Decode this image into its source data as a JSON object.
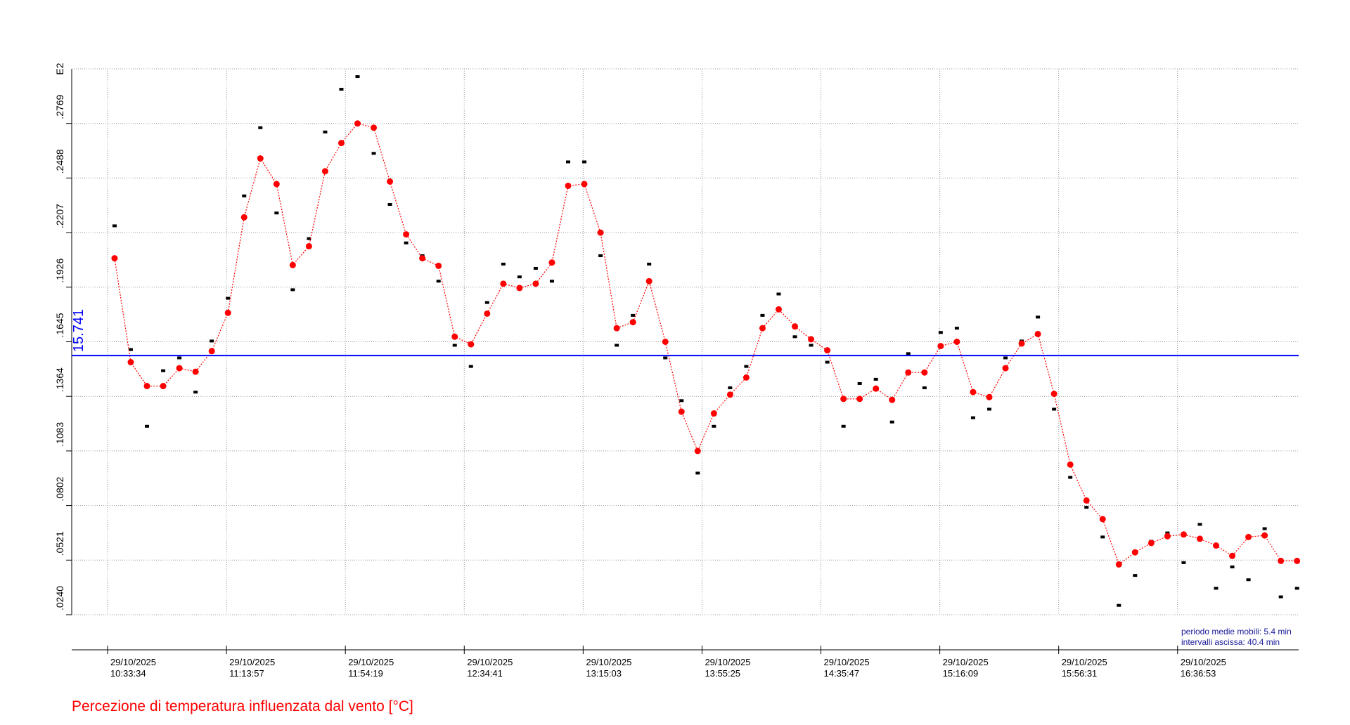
{
  "chart_data": {
    "type": "scatter",
    "title": "Percezione di temperatura influenzata dal vento [°C]",
    "y_multiplier_label": "E2",
    "annotations": [
      "periodo medie mobili: 5.4 min",
      "intervalli ascissa: 40.4 min"
    ],
    "x": [
      "2025-10-29T10:35:57",
      "2025-10-29T10:41:27",
      "2025-10-29T10:46:57",
      "2025-10-29T10:52:27",
      "2025-10-29T10:57:57",
      "2025-10-29T11:03:27",
      "2025-10-29T11:08:57",
      "2025-10-29T11:14:27",
      "2025-10-29T11:19:57",
      "2025-10-29T11:25:27",
      "2025-10-29T11:30:57",
      "2025-10-29T11:36:27",
      "2025-10-29T11:41:57",
      "2025-10-29T11:47:27",
      "2025-10-29T11:52:57",
      "2025-10-29T11:58:27",
      "2025-10-29T12:03:57",
      "2025-10-29T12:09:27",
      "2025-10-29T12:14:57",
      "2025-10-29T12:20:27",
      "2025-10-29T12:25:57",
      "2025-10-29T12:31:27",
      "2025-10-29T12:36:57",
      "2025-10-29T12:42:27",
      "2025-10-29T12:47:57",
      "2025-10-29T12:53:27",
      "2025-10-29T12:58:57",
      "2025-10-29T13:04:27",
      "2025-10-29T13:09:57",
      "2025-10-29T13:15:27",
      "2025-10-29T13:20:57",
      "2025-10-29T13:26:27",
      "2025-10-29T13:31:57",
      "2025-10-29T13:37:27",
      "2025-10-29T13:42:57",
      "2025-10-29T13:48:27",
      "2025-10-29T13:53:57",
      "2025-10-29T13:59:27",
      "2025-10-29T14:04:57",
      "2025-10-29T14:10:27",
      "2025-10-29T14:15:57",
      "2025-10-29T14:21:27",
      "2025-10-29T14:26:57",
      "2025-10-29T14:32:27",
      "2025-10-29T14:37:57",
      "2025-10-29T14:43:27",
      "2025-10-29T14:48:57",
      "2025-10-29T14:54:27",
      "2025-10-29T14:59:57",
      "2025-10-29T15:05:27",
      "2025-10-29T15:10:57",
      "2025-10-29T15:16:27",
      "2025-10-29T15:21:57",
      "2025-10-29T15:27:27",
      "2025-10-29T15:32:57",
      "2025-10-29T15:38:27",
      "2025-10-29T15:43:57",
      "2025-10-29T15:49:27",
      "2025-10-29T15:54:57",
      "2025-10-29T16:00:27",
      "2025-10-29T16:05:57",
      "2025-10-29T16:11:27",
      "2025-10-29T16:16:57",
      "2025-10-29T16:22:27",
      "2025-10-29T16:27:57",
      "2025-10-29T16:33:27",
      "2025-10-29T16:38:57",
      "2025-10-29T16:44:27",
      "2025-10-29T16:49:57",
      "2025-10-29T16:55:27",
      "2025-10-29T17:00:57",
      "2025-10-29T17:06:27",
      "2025-10-29T17:11:57",
      "2025-10-29T17:17:27"
    ],
    "series": [
      {
        "color": "#000000",
        "marker": "square",
        "values": [
          22.42,
          16.05,
          12.1,
          14.96,
          15.62,
          13.86,
          16.49,
          18.69,
          23.96,
          27.47,
          23.08,
          19.13,
          21.76,
          27.25,
          29.45,
          30.1,
          26.15,
          23.52,
          21.54,
          20.88,
          19.57,
          16.27,
          15.18,
          18.47,
          20.45,
          19.79,
          20.23,
          19.57,
          25.71,
          25.71,
          20.88,
          16.27,
          17.81,
          20.45,
          15.62,
          13.42,
          9.69,
          12.1,
          14.08,
          15.18,
          17.81,
          18.91,
          16.71,
          16.27,
          15.4,
          12.1,
          14.3,
          14.52,
          12.32,
          15.84,
          14.08,
          16.93,
          17.15,
          12.54,
          12.98,
          15.62,
          16.49,
          17.72,
          12.98,
          9.47,
          7.93,
          6.4,
          2.88,
          4.42,
          6.18,
          6.61,
          5.08,
          7.05,
          3.76,
          4.86,
          4.2,
          6.83,
          3.32,
          3.76
        ]
      },
      {
        "color": "#ff0000",
        "marker": "circle",
        "line": "dotted",
        "values": [
          20.75,
          15.4,
          14.17,
          14.17,
          15.09,
          14.91,
          15.97,
          17.94,
          22.86,
          25.89,
          24.57,
          20.4,
          21.37,
          25.23,
          26.68,
          27.69,
          27.47,
          24.7,
          21.98,
          20.75,
          20.36,
          16.71,
          16.32,
          17.9,
          19.44,
          19.22,
          19.44,
          20.53,
          24.48,
          24.57,
          22.07,
          17.15,
          17.46,
          19.57,
          16.45,
          12.85,
          10.83,
          12.76,
          13.73,
          14.61,
          17.15,
          18.12,
          17.24,
          16.58,
          16.01,
          13.51,
          13.51,
          14.04,
          13.46,
          14.87,
          14.87,
          16.23,
          16.45,
          13.86,
          13.6,
          15.09,
          16.36,
          16.85,
          13.77,
          10.13,
          8.28,
          7.32,
          4.99,
          5.61,
          6.09,
          6.44,
          6.53,
          6.31,
          5.96,
          5.43,
          6.4,
          6.48,
          5.17,
          5.17
        ]
      }
    ],
    "hlines": [
      {
        "value": 15.741,
        "color": "#0000ff"
      }
    ],
    "xlim": [
      "2025-10-29T10:21:24",
      "2025-10-29T17:18:00"
    ],
    "xticks": [
      {
        "value": "2025-10-29T10:33:34",
        "label": "29/10/2025\n10:33:34"
      },
      {
        "value": "2025-10-29T11:13:57",
        "label": "29/10/2025\n11:13:57"
      },
      {
        "value": "2025-10-29T11:54:19",
        "label": "29/10/2025\n11:54:19"
      },
      {
        "value": "2025-10-29T12:34:41",
        "label": "29/10/2025\n12:34:41"
      },
      {
        "value": "2025-10-29T13:15:03",
        "label": "29/10/2025\n13:15:03"
      },
      {
        "value": "2025-10-29T13:55:25",
        "label": "29/10/2025\n13:55:25"
      },
      {
        "value": "2025-10-29T14:35:47",
        "label": "29/10/2025\n14:35:47"
      },
      {
        "value": "2025-10-29T15:16:09",
        "label": "29/10/2025\n15:16:09"
      },
      {
        "value": "2025-10-29T15:56:31",
        "label": "29/10/2025\n15:56:31"
      },
      {
        "value": "2025-10-29T16:36:53",
        "label": "29/10/2025\n16:36:53"
      }
    ],
    "ylim": [
      2.4,
      30.5
    ],
    "yticks": [
      {
        "value": 2.4,
        "label": ".0240"
      },
      {
        "value": 5.21,
        "label": ".0521"
      },
      {
        "value": 8.02,
        "label": ".0802"
      },
      {
        "value": 10.83,
        "label": ".1083"
      },
      {
        "value": 13.64,
        "label": ".1364"
      },
      {
        "value": 16.45,
        "label": ".1645"
      },
      {
        "value": 19.26,
        "label": ".1926"
      },
      {
        "value": 22.07,
        "label": ".2207"
      },
      {
        "value": 24.88,
        "label": ".2488"
      },
      {
        "value": 27.69,
        "label": ".2769"
      }
    ],
    "grid": true
  }
}
